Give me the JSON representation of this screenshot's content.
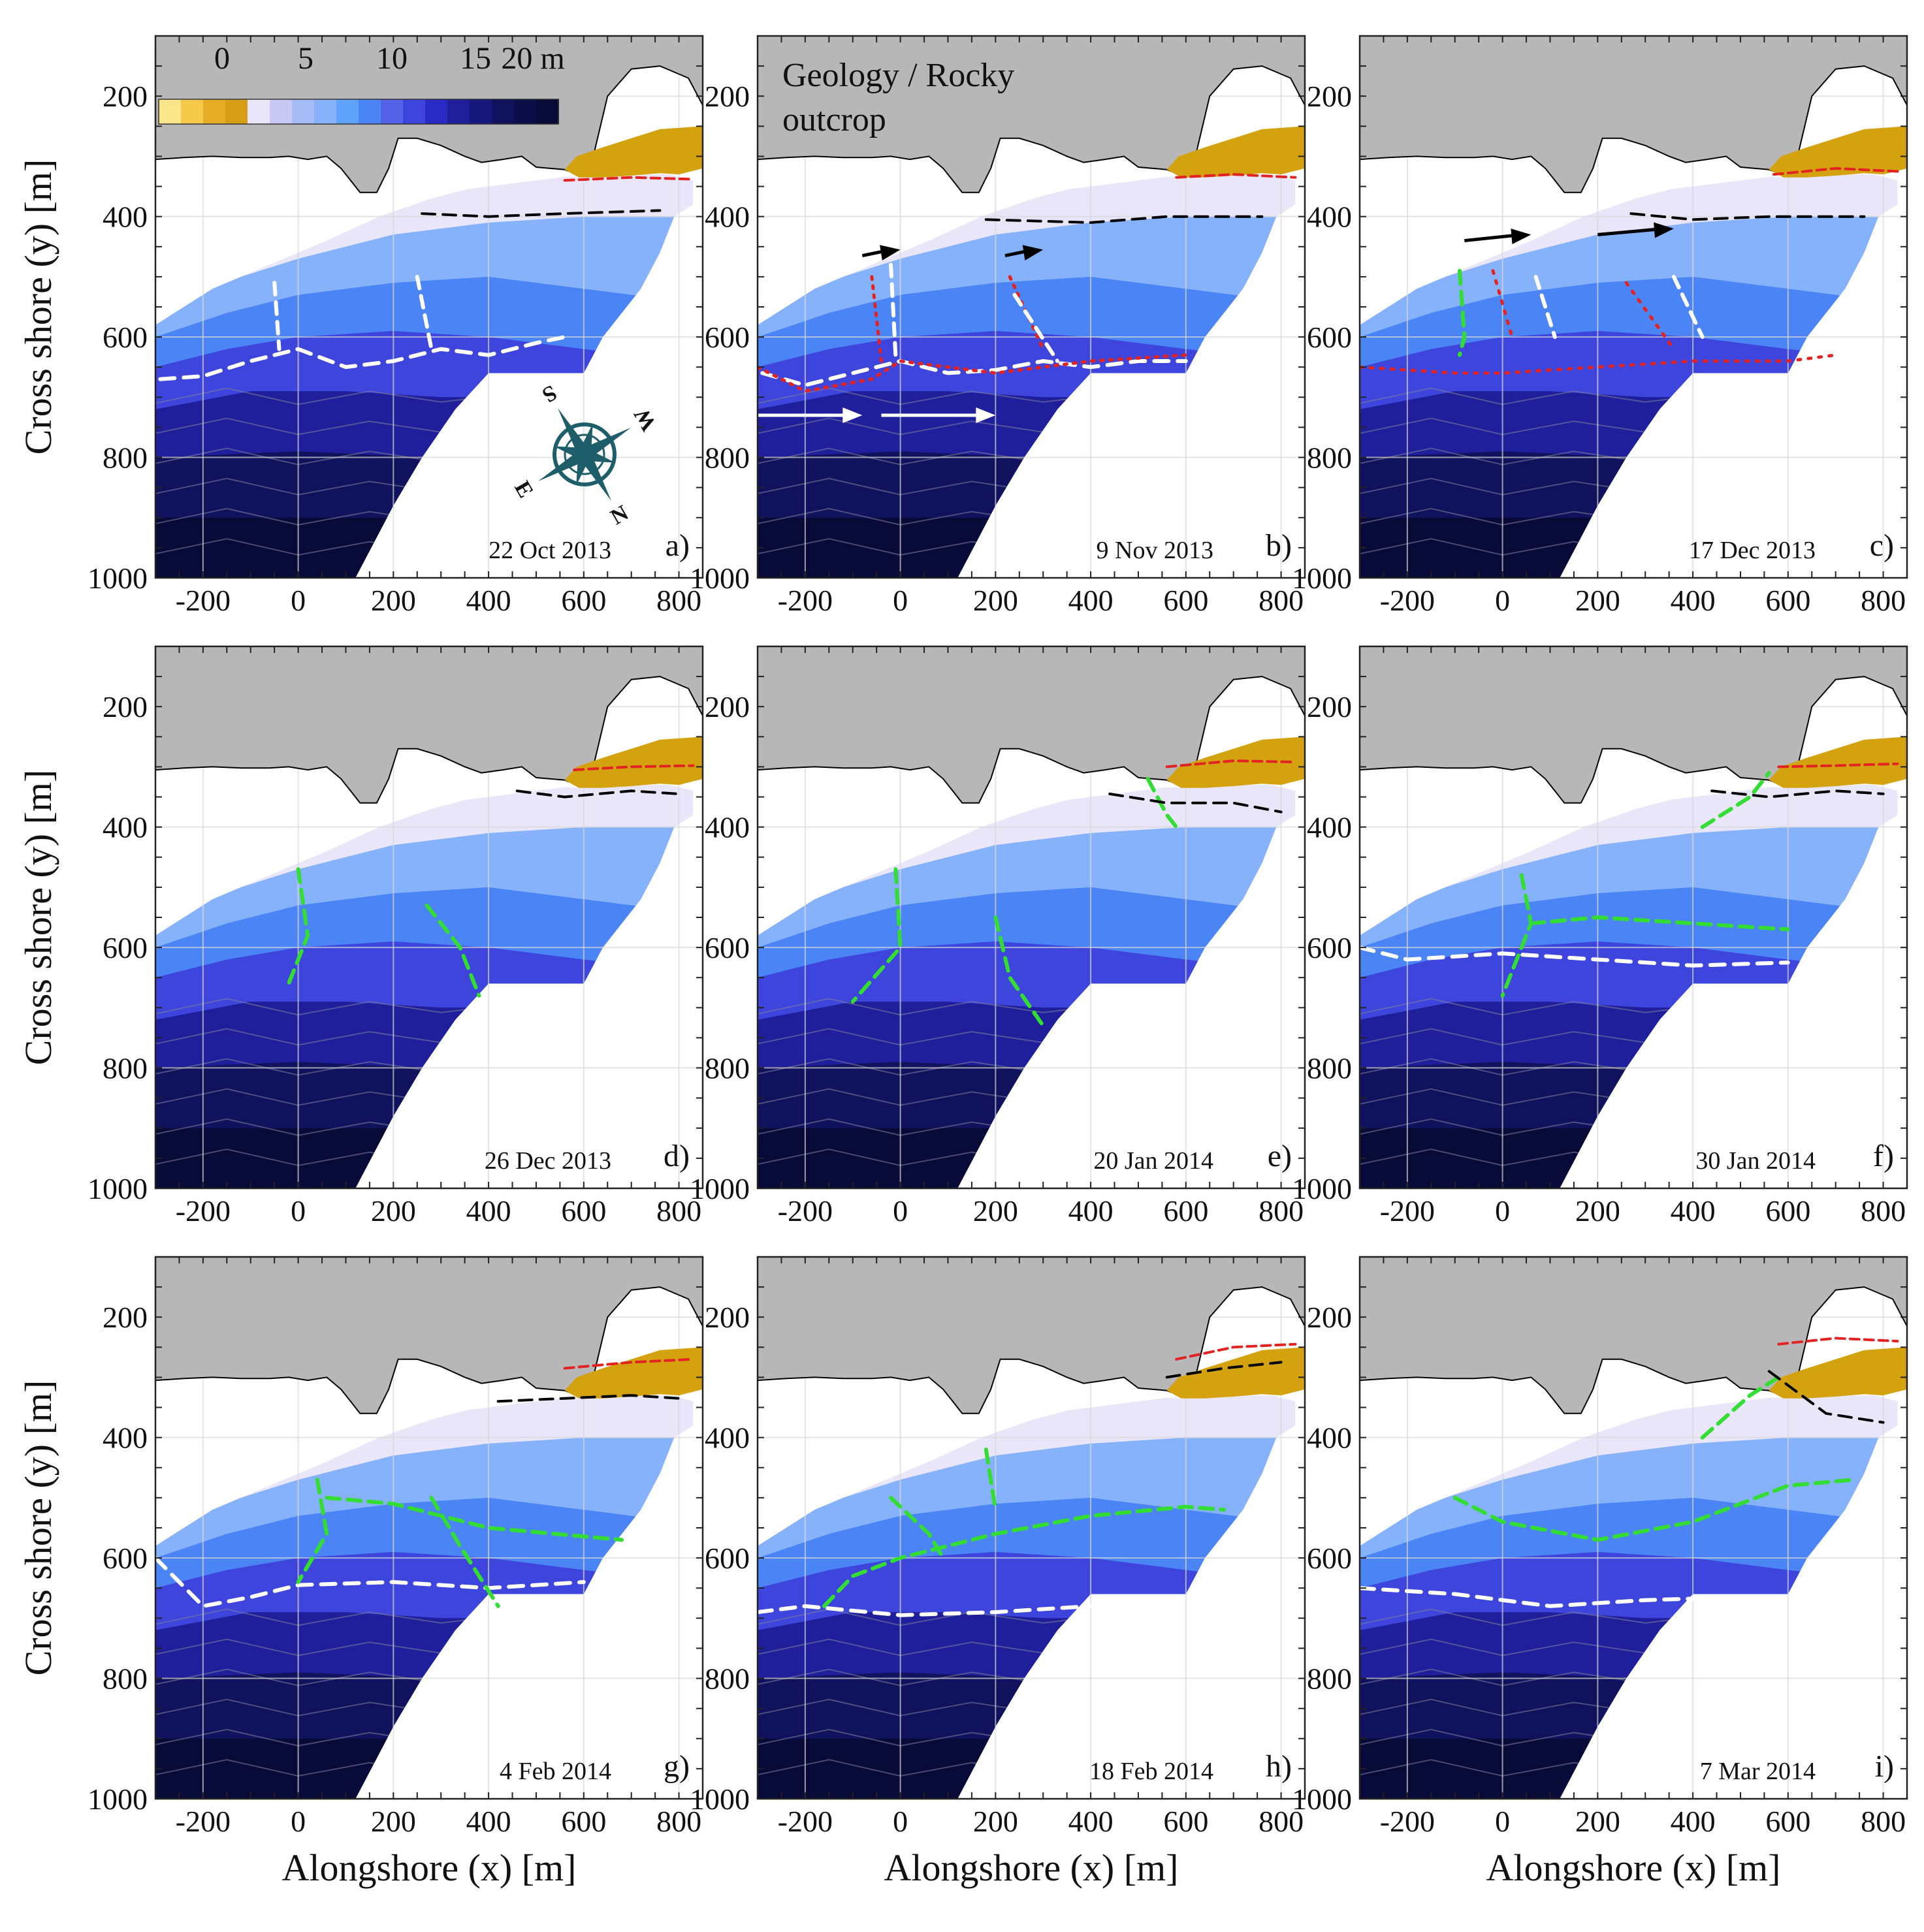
{
  "figure": {
    "colorbar": {
      "ticks": [
        "0",
        "5",
        "10",
        "15",
        "20 m"
      ]
    },
    "geology_label": [
      "Geology / Rocky",
      "outcrop"
    ],
    "compass": {
      "letters": [
        "S",
        "E",
        "N",
        "W"
      ]
    },
    "palette": {
      "land": "#b7b7b7",
      "rock": "#d4a20f",
      "depth": [
        "#fbe58b",
        "#f5ca4a",
        "#e4ad25",
        "#d79e15",
        "#e9e6fa",
        "#c8c8f4",
        "#a6bcf6",
        "#86b2fb",
        "#5fa2fb",
        "#4a84f5",
        "#5463e8",
        "#3d45dc",
        "#2a2bc4",
        "#1f1f9c",
        "#16177a",
        "#10125e",
        "#0b0e49",
        "#080a38"
      ],
      "white_line": "#ffffff",
      "black_line": "#000000",
      "red_line": "#e32222",
      "green_line": "#33dd33",
      "compass": "#1d5e6a"
    }
  },
  "chart_data": [
    {
      "type": "heatmap",
      "panel": "a)",
      "date": "22 Oct 2013",
      "xlabel": "",
      "ylabel": "Cross shore (y) [m]",
      "xlim": [
        -300,
        850
      ],
      "ylim": [
        1000,
        100
      ],
      "xticks": [
        "-200",
        "0",
        "200",
        "400",
        "600",
        "800"
      ],
      "yticks": [
        "200",
        "400",
        "600",
        "800",
        "1000"
      ],
      "colorbar_range_m": [
        -3,
        20
      ],
      "features": [
        "white dashed sandbar line",
        "white dashed rip channels",
        "black dashed shoreline"
      ]
    },
    {
      "type": "heatmap",
      "panel": "b)",
      "date": "9 Nov 2013",
      "xlabel": "",
      "ylabel": "",
      "xlim": [
        -300,
        850
      ],
      "ylim": [
        1000,
        100
      ],
      "xticks": [
        "-200",
        "0",
        "200",
        "400",
        "600",
        "800"
      ],
      "yticks": [
        "200",
        "400",
        "600",
        "800",
        "1000"
      ],
      "features": [
        "white dashed sandbar line",
        "red dotted lines",
        "black arrows",
        "white arrows"
      ]
    },
    {
      "type": "heatmap",
      "panel": "c)",
      "date": "17 Dec 2013",
      "xlabel": "",
      "ylabel": "",
      "xlim": [
        -300,
        850
      ],
      "ylim": [
        1000,
        100
      ],
      "xticks": [
        "-200",
        "0",
        "200",
        "400",
        "600",
        "800"
      ],
      "yticks": [
        "200",
        "400",
        "600",
        "800",
        "1000"
      ],
      "features": [
        "red dotted lines",
        "green dashed line",
        "black arrows"
      ]
    },
    {
      "type": "heatmap",
      "panel": "d)",
      "date": "26 Dec 2013",
      "xlabel": "",
      "ylabel": "Cross shore (y) [m]",
      "xlim": [
        -300,
        850
      ],
      "ylim": [
        1000,
        100
      ],
      "xticks": [
        "-200",
        "0",
        "200",
        "400",
        "600",
        "800"
      ],
      "yticks": [
        "200",
        "400",
        "600",
        "800",
        "1000"
      ],
      "features": [
        "green dashed lines"
      ]
    },
    {
      "type": "heatmap",
      "panel": "e)",
      "date": "20 Jan 2014",
      "xlabel": "",
      "ylabel": "",
      "xlim": [
        -300,
        850
      ],
      "ylim": [
        1000,
        100
      ],
      "xticks": [
        "-200",
        "0",
        "200",
        "400",
        "600",
        "800"
      ],
      "yticks": [
        "200",
        "400",
        "600",
        "800",
        "1000"
      ],
      "features": [
        "green dashed lines"
      ]
    },
    {
      "type": "heatmap",
      "panel": "f)",
      "date": "30 Jan 2014",
      "xlabel": "",
      "ylabel": "",
      "xlim": [
        -300,
        850
      ],
      "ylim": [
        1000,
        100
      ],
      "xticks": [
        "-200",
        "0",
        "200",
        "400",
        "600",
        "800"
      ],
      "yticks": [
        "200",
        "400",
        "600",
        "800",
        "1000"
      ],
      "features": [
        "white dashed sandbar line",
        "green dashed lines"
      ]
    },
    {
      "type": "heatmap",
      "panel": "g)",
      "date": "4 Feb 2014",
      "xlabel": "Alongshore (x) [m]",
      "ylabel": "Cross shore (y) [m]",
      "xlim": [
        -300,
        850
      ],
      "ylim": [
        1000,
        100
      ],
      "xticks": [
        "-200",
        "0",
        "200",
        "400",
        "600",
        "800"
      ],
      "yticks": [
        "200",
        "400",
        "600",
        "800",
        "1000"
      ],
      "features": [
        "white dashed sandbar line",
        "green dashed lines"
      ]
    },
    {
      "type": "heatmap",
      "panel": "h)",
      "date": "18 Feb 2014",
      "xlabel": "Alongshore (x) [m]",
      "ylabel": "",
      "xlim": [
        -300,
        850
      ],
      "ylim": [
        1000,
        100
      ],
      "xticks": [
        "-200",
        "0",
        "200",
        "400",
        "600",
        "800"
      ],
      "yticks": [
        "200",
        "400",
        "600",
        "800",
        "1000"
      ],
      "features": [
        "white dashed sandbar line",
        "green dashed lines"
      ]
    },
    {
      "type": "heatmap",
      "panel": "i)",
      "date": "7 Mar 2014",
      "xlabel": "Alongshore (x) [m]",
      "ylabel": "",
      "xlim": [
        -300,
        850
      ],
      "ylim": [
        1000,
        100
      ],
      "xticks": [
        "-200",
        "0",
        "200",
        "400",
        "600",
        "800"
      ],
      "yticks": [
        "200",
        "400",
        "600",
        "800",
        "1000"
      ],
      "features": [
        "white dashed sandbar line",
        "green dashed lines"
      ]
    }
  ]
}
